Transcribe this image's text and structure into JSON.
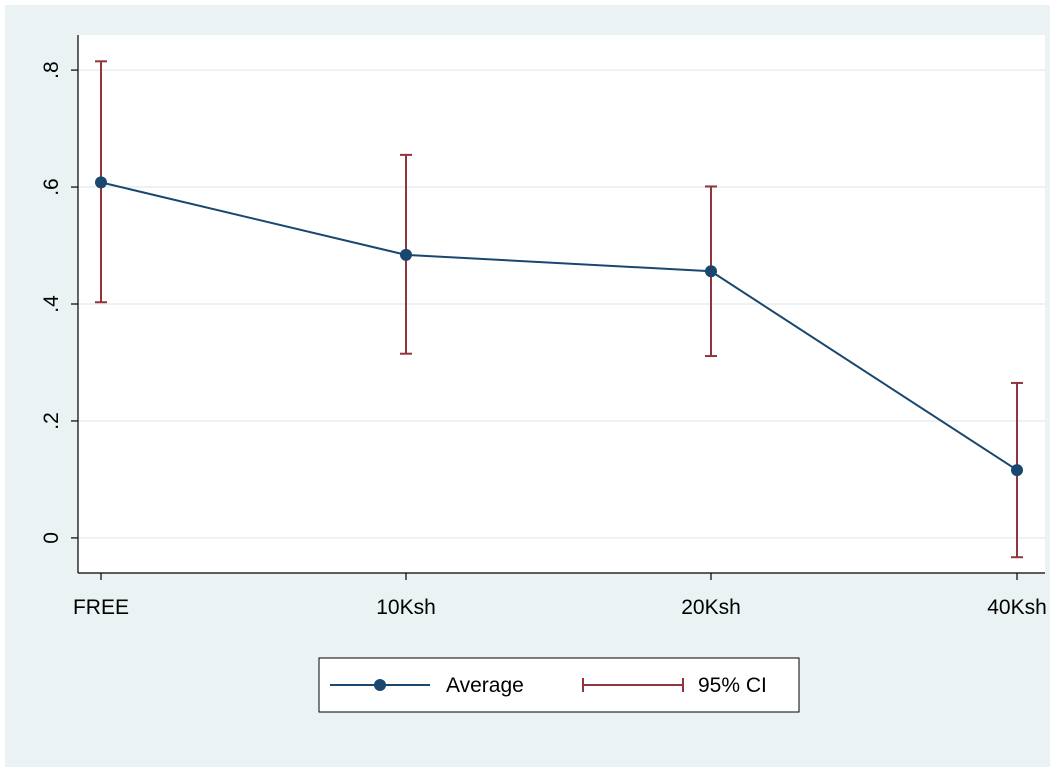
{
  "chart_data": {
    "type": "line",
    "title": "",
    "xlabel": "",
    "ylabel": "",
    "categories": [
      "FREE",
      "10Ksh",
      "20Ksh",
      "40Ksh"
    ],
    "ylim": [
      -0.06,
      0.86
    ],
    "yticks": [
      0,
      0.2,
      0.4,
      0.6,
      0.8
    ],
    "ytick_labels": [
      "0",
      ".2",
      ".4",
      ".6",
      ".8"
    ],
    "grid": true,
    "legend_position": "bottom",
    "series": [
      {
        "name": "Average",
        "kind": "line-with-markers",
        "color": "#1a476f",
        "values": [
          0.608,
          0.484,
          0.456,
          0.116
        ]
      },
      {
        "name": "95% CI",
        "kind": "error-bars",
        "color": "#90353b",
        "lower": [
          0.403,
          0.315,
          0.311,
          -0.033
        ],
        "upper": [
          0.815,
          0.655,
          0.601,
          0.265
        ]
      }
    ],
    "colors": {
      "page_background": "#eaf2f3",
      "plot_background": "#ffffff",
      "gridline": "#eaf2f3",
      "axis": "#000000"
    }
  }
}
